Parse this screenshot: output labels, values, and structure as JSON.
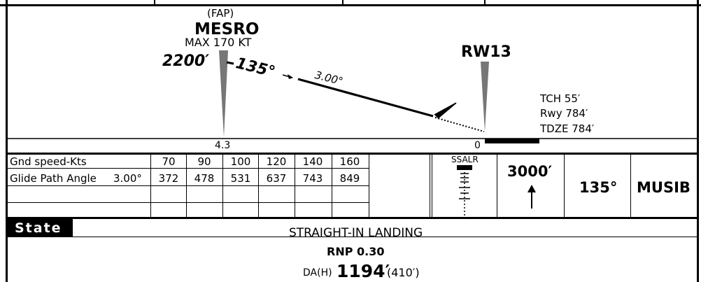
{
  "profile": {
    "fap_tag": "(FAP)",
    "fix_name": "MESRO",
    "speed_limit": "MAX 170 KT",
    "altitude": "2200′",
    "course": "135°",
    "glide_angle": "3.00°",
    "fix_distance": "4.3",
    "runway_label": "RW13",
    "threshold_distance": "0",
    "tch": "TCH 55′",
    "rwy_elev": "Rwy 784′",
    "tdze": "TDZE 784′"
  },
  "speed_table": {
    "row1_label": "Gnd speed-Kts",
    "row2_label": "Glide Path Angle",
    "row2_angle": "3.00°",
    "speeds": [
      "70",
      "90",
      "100",
      "120",
      "140",
      "160"
    ],
    "rates": [
      "372",
      "478",
      "531",
      "637",
      "743",
      "849"
    ]
  },
  "lighting": {
    "label": "SSALR"
  },
  "missed_approach": {
    "altitude": "3000′",
    "heading": "135°",
    "fix": "MUSIB"
  },
  "minimums": {
    "state_label": "State",
    "landing_type": "STRAIGHT-IN LANDING",
    "rnp": "RNP 0.30",
    "da_prefix": "DA(H)",
    "da_value": "1194′",
    "da_height": "(410′)"
  }
}
